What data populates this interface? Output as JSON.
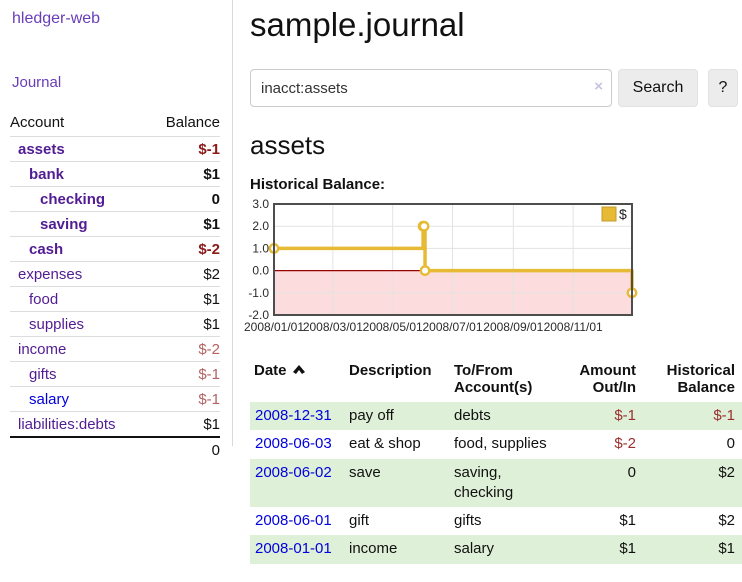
{
  "app": {
    "title": "hledger-web",
    "nav_journal": "Journal"
  },
  "sidebar": {
    "table": {
      "col_account": "Account",
      "col_balance": "Balance"
    },
    "accounts": [
      {
        "name": "assets",
        "depth": 1,
        "balance": "$-1",
        "bold": true,
        "neg": "strong"
      },
      {
        "name": "bank",
        "depth": 2,
        "balance": "$1",
        "bold": true
      },
      {
        "name": "checking",
        "depth": 3,
        "balance": "0",
        "bold": true
      },
      {
        "name": "saving",
        "depth": 3,
        "balance": "$1",
        "bold": true
      },
      {
        "name": "cash",
        "depth": 2,
        "balance": "$-2",
        "bold": true,
        "neg": "strong"
      },
      {
        "name": "expenses",
        "depth": 1,
        "balance": "$2"
      },
      {
        "name": "food",
        "depth": 2,
        "balance": "$1"
      },
      {
        "name": "supplies",
        "depth": 2,
        "balance": "$1"
      },
      {
        "name": "income",
        "depth": 1,
        "balance": "$-2",
        "neg": "soft"
      },
      {
        "name": "gifts",
        "depth": 2,
        "balance": "$-1",
        "neg": "soft"
      },
      {
        "name": "salary",
        "depth": 2,
        "balance": "$-1",
        "neg": "soft",
        "blue": true
      },
      {
        "name": "liabilities:debts",
        "depth": 1,
        "balance": "$1"
      }
    ],
    "total": "0"
  },
  "header": {
    "title": "sample.journal"
  },
  "search": {
    "value": "inacct:assets",
    "clear_icon": "×",
    "button": "Search",
    "help": "?"
  },
  "account_page": {
    "title": "assets",
    "chart_label": "Historical Balance:"
  },
  "chart_data": {
    "type": "line",
    "step": true,
    "title": "Historical Balance:",
    "series": [
      {
        "name": "$",
        "color": "#e7ba35",
        "points": [
          [
            "2008-01-01",
            1
          ],
          [
            "2008-06-01",
            2
          ],
          [
            "2008-06-02",
            2
          ],
          [
            "2008-06-03",
            0
          ],
          [
            "2008-12-31",
            -1
          ]
        ]
      }
    ],
    "ylim": [
      -2,
      3
    ],
    "yticks": [
      "3.0",
      "2.0",
      "1.0",
      "0.0",
      "-1.0",
      "-2.0"
    ],
    "xticks": [
      "2008/01/01",
      "2008/03/01",
      "2008/05/01",
      "2008/07/01",
      "2008/09/01",
      "2008/11/01"
    ],
    "x_range": [
      "2008-01-01",
      "2008-12-31"
    ],
    "negative_fill": "#fcdcdc",
    "zero_line_color": "#990000",
    "grid": true,
    "legend_position": "top-right",
    "legend": [
      "$"
    ]
  },
  "register": {
    "columns": {
      "date": "Date",
      "description": "Description",
      "accounts": "To/From Account(s)",
      "amount": "Amount Out/In",
      "balance": "Historical Balance"
    },
    "sort": {
      "column": "Date",
      "direction": "ascending"
    },
    "rows": [
      {
        "date": "2008-12-31",
        "description": "pay off",
        "accounts": "debts",
        "amount": "$-1",
        "amount_negative": true,
        "balance": "$-1",
        "balance_negative": true
      },
      {
        "date": "2008-06-03",
        "description": "eat & shop",
        "accounts": "food, supplies",
        "amount": "$-2",
        "amount_negative": true,
        "balance": "0",
        "balance_negative": false
      },
      {
        "date": "2008-06-02",
        "description": "save",
        "accounts": "saving,\nchecking",
        "amount": "0",
        "amount_negative": false,
        "balance": "$2",
        "balance_negative": false
      },
      {
        "date": "2008-06-01",
        "description": "gift",
        "accounts": "gifts",
        "amount": "$1",
        "amount_negative": false,
        "balance": "$2",
        "balance_negative": false
      },
      {
        "date": "2008-01-01",
        "description": "income",
        "accounts": "salary",
        "amount": "$1",
        "amount_negative": false,
        "balance": "$1",
        "balance_negative": false
      }
    ]
  }
}
